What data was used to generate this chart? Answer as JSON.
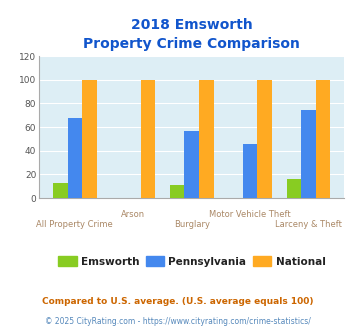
{
  "title_line1": "2018 Emsworth",
  "title_line2": "Property Crime Comparison",
  "categories": [
    "All Property Crime",
    "Arson",
    "Burglary",
    "Motor Vehicle Theft",
    "Larceny & Theft"
  ],
  "emsworth": [
    13,
    0,
    11,
    0,
    16
  ],
  "pennsylvania": [
    68,
    0,
    57,
    46,
    74
  ],
  "national": [
    100,
    100,
    100,
    100,
    100
  ],
  "color_emsworth": "#88cc22",
  "color_pennsylvania": "#4488ee",
  "color_national": "#ffaa22",
  "color_title": "#1155cc",
  "color_bg": "#ddeef5",
  "ylim": [
    0,
    120
  ],
  "yticks": [
    0,
    20,
    40,
    60,
    80,
    100,
    120
  ],
  "xlabel_color": "#aa8866",
  "legend_text_color": "#222222",
  "footnote1": "Compared to U.S. average. (U.S. average equals 100)",
  "footnote2": "© 2025 CityRating.com - https://www.cityrating.com/crime-statistics/",
  "footnote1_color": "#cc6600",
  "footnote2_color": "#5588bb"
}
